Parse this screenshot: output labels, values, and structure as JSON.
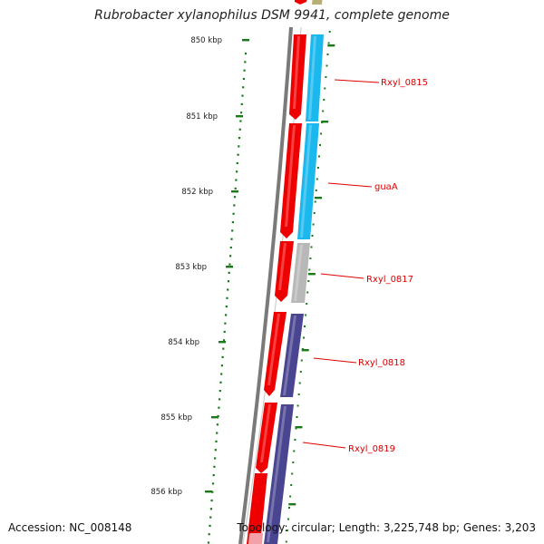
{
  "title": "Rubrobacter xylanophilus DSM 9941, complete genome",
  "footer": {
    "accession": "Accession: NC_008148",
    "topology": "Topology: circular; Length: 3,225,748 bp; Genes: 3,203"
  },
  "ticks": [
    {
      "label": "850 kbp"
    },
    {
      "label": "851 kbp"
    },
    {
      "label": "852 kbp"
    },
    {
      "label": "853 kbp"
    },
    {
      "label": "854 kbp"
    },
    {
      "label": "855 kbp"
    },
    {
      "label": "856 kbp"
    }
  ],
  "genes": [
    {
      "name": "Rxyl_0815",
      "color": "#1bb8ee"
    },
    {
      "name": "guaA",
      "color": "#1bb8ee"
    },
    {
      "name": "Rxyl_0817",
      "color": "#b8b8b8"
    },
    {
      "name": "Rxyl_0818",
      "color": "#4a4590"
    },
    {
      "name": "Rxyl_0819",
      "color": "#4a4590"
    }
  ],
  "colors": {
    "cds_red": "#ee0000",
    "label_red": "#dd0000",
    "tick_green": "#1a7a1a",
    "backbone": "#7a7a7a"
  }
}
